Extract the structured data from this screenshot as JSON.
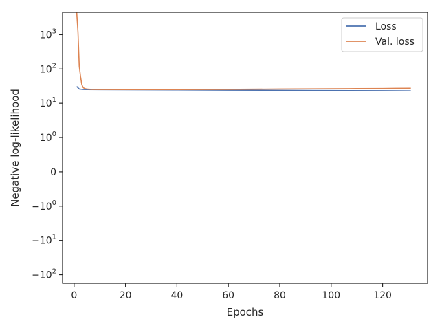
{
  "chart_data": {
    "type": "line",
    "xlabel": "Epochs",
    "ylabel": "Negative log-likelihood",
    "xlim": [
      -4.5,
      137.5
    ],
    "yscale": "symlog",
    "ylim_symlog": [
      -3.25,
      4.65
    ],
    "x_ticks": [
      0,
      20,
      40,
      60,
      80,
      100,
      120
    ],
    "y_ticks": [
      {
        "value": 1000,
        "label": "10",
        "exp": "3"
      },
      {
        "value": 100,
        "label": "10",
        "exp": "2"
      },
      {
        "value": 10,
        "label": "10",
        "exp": "1"
      },
      {
        "value": 1,
        "label": "10",
        "exp": "0"
      },
      {
        "value": 0,
        "label": "0",
        "exp": ""
      },
      {
        "value": -1,
        "label": "−10",
        "exp": "0"
      },
      {
        "value": -10,
        "label": "−10",
        "exp": "1"
      },
      {
        "value": -100,
        "label": "−10",
        "exp": "2"
      }
    ],
    "grid": false,
    "legend": {
      "position": "top-right"
    },
    "series": [
      {
        "name": "Loss",
        "color": "#4c72b0",
        "x": [
          1,
          2,
          3,
          5,
          10,
          20,
          40,
          60,
          80,
          100,
          120,
          131
        ],
        "y": [
          31,
          26,
          25.5,
          25.2,
          25,
          24.8,
          24.5,
          24.2,
          23.8,
          23.5,
          23.2,
          23
        ]
      },
      {
        "name": "Val. loss",
        "color": "#dd8452",
        "x": [
          1,
          1.5,
          2,
          2.5,
          3,
          3.5,
          4,
          5,
          7,
          10,
          20,
          40,
          60,
          80,
          100,
          110,
          120,
          125,
          131
        ],
        "y": [
          4500,
          1200,
          120,
          60,
          35,
          29,
          27,
          26,
          25.5,
          25.3,
          25.1,
          25.2,
          25.5,
          26,
          26.5,
          26.8,
          27,
          27.3,
          27.5
        ]
      }
    ]
  }
}
